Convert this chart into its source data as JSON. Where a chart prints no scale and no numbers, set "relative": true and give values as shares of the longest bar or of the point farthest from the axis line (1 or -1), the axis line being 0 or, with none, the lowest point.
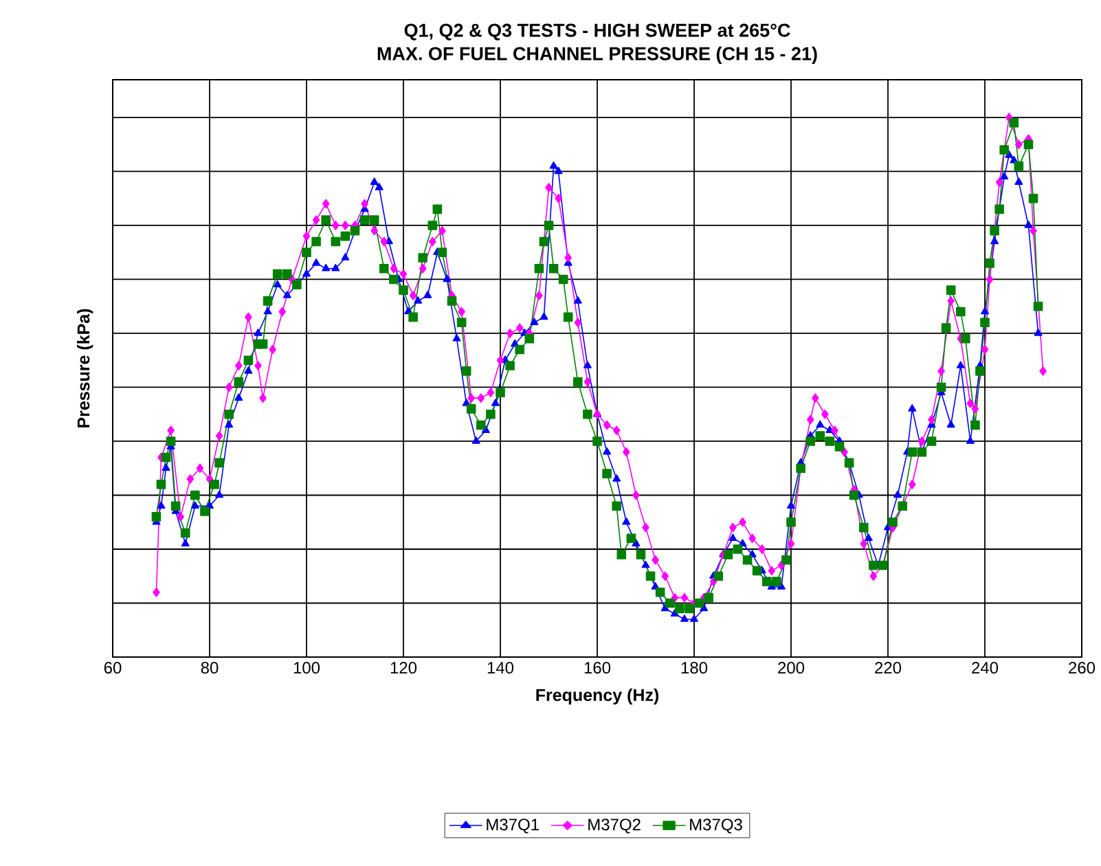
{
  "chart_data": {
    "type": "line",
    "title": "Q1, Q2 & Q3 TESTS - HIGH SWEEP at 265°C",
    "subtitle": "MAX. OF FUEL CHANNEL PRESSURE (CH 15 - 21)",
    "xlabel": "Frequency (Hz)",
    "ylabel": "Pressure (kPa)",
    "relative": true,
    "xlim": [
      60,
      260
    ],
    "xticks": [
      60,
      80,
      100,
      120,
      140,
      160,
      180,
      200,
      220,
      240,
      260
    ],
    "grid": true,
    "legend": "bottom",
    "line_style": "solid",
    "series": [
      {
        "name": "M37Q1",
        "color": "#0000ff",
        "marker": "triangle",
        "x": [
          69,
          70,
          71,
          72,
          73,
          75,
          77,
          80,
          82,
          84,
          86,
          88,
          90,
          92,
          94,
          96,
          98,
          100,
          102,
          104,
          106,
          108,
          110,
          112,
          114,
          115,
          117,
          119,
          121,
          123,
          125,
          127,
          129,
          131,
          133,
          135,
          137,
          139,
          141,
          143,
          145,
          147,
          149,
          151,
          152,
          154,
          156,
          158,
          160,
          162,
          164,
          166,
          168,
          170,
          172,
          174,
          176,
          178,
          180,
          182,
          184,
          186,
          188,
          190,
          192,
          194,
          196,
          198,
          200,
          202,
          204,
          206,
          208,
          210,
          212,
          214,
          216,
          218,
          220,
          222,
          224,
          225,
          227,
          229,
          231,
          233,
          235,
          237,
          239,
          240,
          242,
          244,
          245,
          246,
          247,
          249,
          251
        ],
        "values": [
          0.25,
          0.28,
          0.35,
          0.39,
          0.27,
          0.21,
          0.28,
          0.28,
          0.3,
          0.43,
          0.48,
          0.53,
          0.6,
          0.64,
          0.69,
          0.67,
          0.69,
          0.71,
          0.73,
          0.72,
          0.72,
          0.74,
          0.79,
          0.83,
          0.88,
          0.87,
          0.77,
          0.7,
          0.64,
          0.66,
          0.67,
          0.75,
          0.7,
          0.59,
          0.47,
          0.4,
          0.42,
          0.47,
          0.55,
          0.58,
          0.6,
          0.62,
          0.63,
          0.91,
          0.9,
          0.73,
          0.66,
          0.54,
          0.45,
          0.38,
          0.33,
          0.25,
          0.21,
          0.17,
          0.13,
          0.09,
          0.08,
          0.07,
          0.07,
          0.09,
          0.15,
          0.19,
          0.22,
          0.21,
          0.19,
          0.16,
          0.13,
          0.13,
          0.28,
          0.36,
          0.41,
          0.43,
          0.42,
          0.4,
          0.36,
          0.3,
          0.22,
          0.17,
          0.24,
          0.3,
          0.38,
          0.46,
          0.38,
          0.43,
          0.49,
          0.43,
          0.54,
          0.4,
          0.54,
          0.64,
          0.77,
          0.89,
          0.93,
          0.92,
          0.88,
          0.8,
          0.6
        ]
      },
      {
        "name": "M37Q2",
        "color": "#ff00ff",
        "marker": "diamond",
        "x": [
          69,
          70,
          72,
          74,
          76,
          78,
          80,
          82,
          84,
          86,
          88,
          90,
          91,
          93,
          95,
          97,
          100,
          102,
          104,
          106,
          108,
          110,
          112,
          114,
          116,
          118,
          120,
          122,
          124,
          126,
          128,
          130,
          132,
          134,
          136,
          138,
          140,
          142,
          144,
          146,
          148,
          149,
          150,
          152,
          154,
          156,
          158,
          160,
          162,
          164,
          166,
          168,
          170,
          172,
          174,
          176,
          178,
          180,
          182,
          184,
          186,
          188,
          190,
          192,
          194,
          196,
          198,
          200,
          202,
          204,
          205,
          207,
          209,
          211,
          213,
          215,
          217,
          219,
          221,
          223,
          225,
          227,
          229,
          231,
          233,
          235,
          237,
          238,
          240,
          241,
          243,
          245,
          247,
          249,
          250,
          252
        ],
        "values": [
          0.12,
          0.37,
          0.42,
          0.26,
          0.33,
          0.35,
          0.33,
          0.41,
          0.5,
          0.54,
          0.63,
          0.54,
          0.48,
          0.57,
          0.64,
          0.7,
          0.78,
          0.81,
          0.84,
          0.8,
          0.8,
          0.8,
          0.84,
          0.79,
          0.77,
          0.72,
          0.71,
          0.67,
          0.72,
          0.77,
          0.79,
          0.67,
          0.64,
          0.48,
          0.48,
          0.49,
          0.55,
          0.6,
          0.61,
          0.6,
          0.67,
          0.77,
          0.87,
          0.85,
          0.74,
          0.62,
          0.51,
          0.45,
          0.43,
          0.42,
          0.38,
          0.3,
          0.24,
          0.18,
          0.15,
          0.11,
          0.11,
          0.1,
          0.11,
          0.14,
          0.19,
          0.24,
          0.25,
          0.22,
          0.2,
          0.16,
          0.17,
          0.21,
          0.35,
          0.44,
          0.48,
          0.45,
          0.42,
          0.38,
          0.31,
          0.21,
          0.15,
          0.17,
          0.24,
          0.28,
          0.32,
          0.4,
          0.44,
          0.53,
          0.66,
          0.59,
          0.47,
          0.46,
          0.57,
          0.7,
          0.88,
          1.0,
          0.95,
          0.96,
          0.79,
          0.53
        ]
      },
      {
        "name": "M37Q3",
        "color": "#008000",
        "marker": "square",
        "x": [
          69,
          70,
          71,
          72,
          73,
          75,
          77,
          79,
          81,
          82,
          84,
          86,
          88,
          90,
          91,
          92,
          94,
          96,
          98,
          100,
          102,
          104,
          106,
          108,
          110,
          112,
          114,
          116,
          118,
          120,
          122,
          124,
          126,
          127,
          128,
          130,
          132,
          133,
          134,
          136,
          138,
          140,
          142,
          144,
          146,
          148,
          149,
          150,
          151,
          153,
          154,
          156,
          158,
          160,
          162,
          164,
          165,
          167,
          169,
          171,
          173,
          175,
          177,
          179,
          181,
          183,
          185,
          187,
          189,
          191,
          193,
          195,
          197,
          199,
          200,
          202,
          204,
          206,
          208,
          210,
          212,
          213,
          215,
          217,
          219,
          221,
          223,
          225,
          227,
          229,
          231,
          232,
          233,
          235,
          236,
          238,
          239,
          240,
          241,
          242,
          243,
          244,
          246,
          247,
          249,
          250,
          251
        ],
        "values": [
          0.26,
          0.32,
          0.37,
          0.4,
          0.28,
          0.23,
          0.3,
          0.27,
          0.32,
          0.36,
          0.45,
          0.51,
          0.55,
          0.58,
          0.58,
          0.66,
          0.71,
          0.71,
          0.69,
          0.75,
          0.77,
          0.81,
          0.77,
          0.78,
          0.79,
          0.81,
          0.81,
          0.72,
          0.7,
          0.68,
          0.63,
          0.74,
          0.8,
          0.83,
          0.75,
          0.66,
          0.62,
          0.53,
          0.46,
          0.43,
          0.45,
          0.49,
          0.54,
          0.57,
          0.59,
          0.72,
          0.77,
          0.8,
          0.72,
          0.7,
          0.63,
          0.51,
          0.45,
          0.4,
          0.34,
          0.28,
          0.19,
          0.22,
          0.19,
          0.15,
          0.12,
          0.1,
          0.09,
          0.09,
          0.1,
          0.11,
          0.15,
          0.19,
          0.2,
          0.18,
          0.16,
          0.14,
          0.14,
          0.18,
          0.25,
          0.35,
          0.4,
          0.41,
          0.4,
          0.39,
          0.36,
          0.3,
          0.24,
          0.17,
          0.17,
          0.25,
          0.28,
          0.38,
          0.38,
          0.4,
          0.5,
          0.61,
          0.68,
          0.64,
          0.59,
          0.43,
          0.53,
          0.62,
          0.73,
          0.79,
          0.83,
          0.94,
          0.99,
          0.91,
          0.95,
          0.85,
          0.65
        ]
      }
    ]
  }
}
